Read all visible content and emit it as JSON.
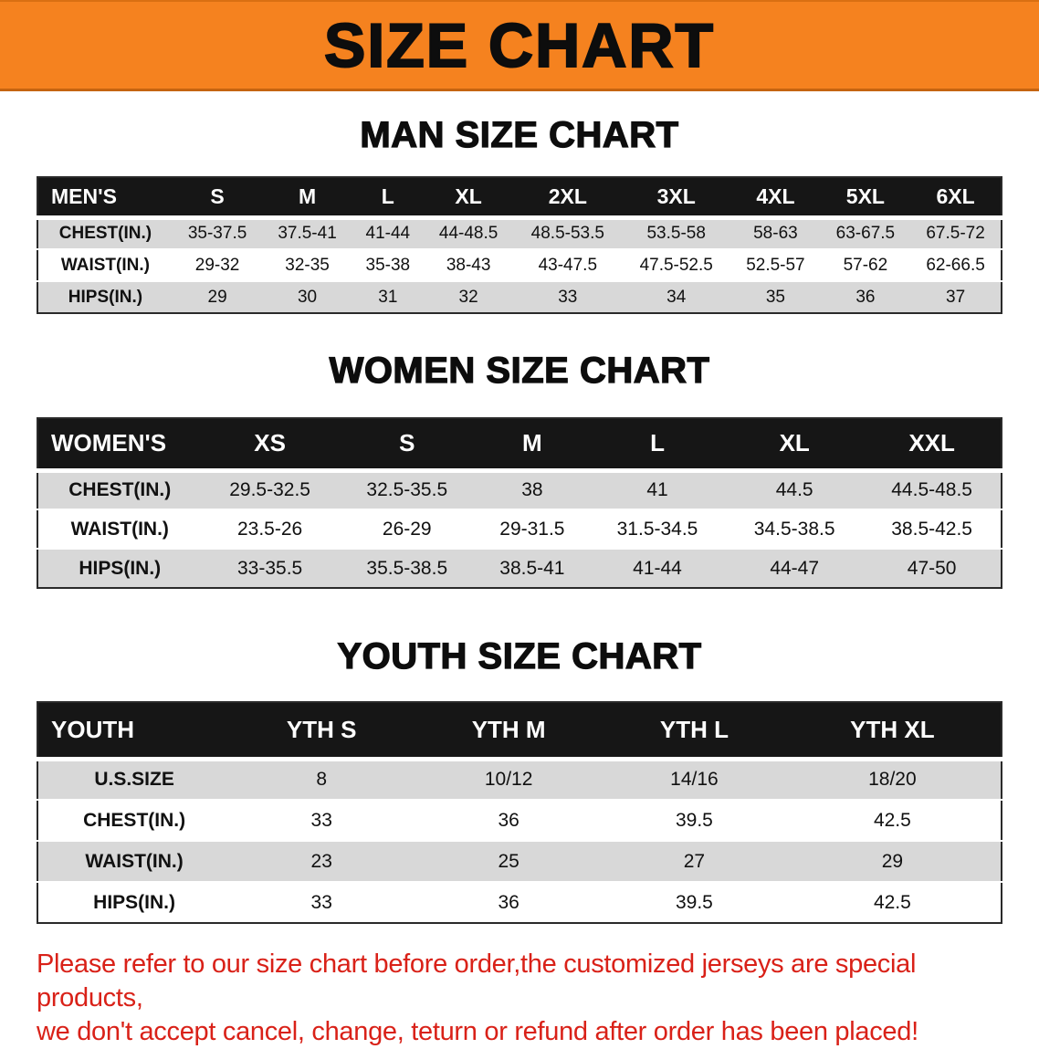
{
  "banner": {
    "title": "SIZE CHART"
  },
  "colors": {
    "banner_bg": "#f5821f",
    "table_header_bg": "#161616",
    "row_alt_bg": "#d8d8d8",
    "disclaimer_red": "#d92118"
  },
  "sections": [
    {
      "heading": "MAN SIZE CHART",
      "table": {
        "header": [
          "MEN'S",
          "S",
          "M",
          "L",
          "XL",
          "2XL",
          "3XL",
          "4XL",
          "5XL",
          "6XL"
        ],
        "rows": [
          [
            "CHEST(IN.)",
            "35-37.5",
            "37.5-41",
            "41-44",
            "44-48.5",
            "48.5-53.5",
            "53.5-58",
            "58-63",
            "63-67.5",
            "67.5-72"
          ],
          [
            "WAIST(IN.)",
            "29-32",
            "32-35",
            "35-38",
            "38-43",
            "43-47.5",
            "47.5-52.5",
            "52.5-57",
            "57-62",
            "62-66.5"
          ],
          [
            "HIPS(IN.)",
            "29",
            "30",
            "31",
            "32",
            "33",
            "34",
            "35",
            "36",
            "37"
          ]
        ]
      }
    },
    {
      "heading": "WOMEN SIZE CHART",
      "table": {
        "header": [
          "WOMEN'S",
          "XS",
          "S",
          "M",
          "L",
          "XL",
          "XXL"
        ],
        "rows": [
          [
            "CHEST(IN.)",
            "29.5-32.5",
            "32.5-35.5",
            "38",
            "41",
            "44.5",
            "44.5-48.5"
          ],
          [
            "WAIST(IN.)",
            "23.5-26",
            "26-29",
            "29-31.5",
            "31.5-34.5",
            "34.5-38.5",
            "38.5-42.5"
          ],
          [
            "HIPS(IN.)",
            "33-35.5",
            "35.5-38.5",
            "38.5-41",
            "41-44",
            "44-47",
            "47-50"
          ]
        ]
      }
    },
    {
      "heading": "YOUTH SIZE CHART",
      "table": {
        "header": [
          "YOUTH",
          "YTH S",
          "YTH M",
          "YTH L",
          "YTH XL"
        ],
        "rows": [
          [
            "U.S.SIZE",
            "8",
            "10/12",
            "14/16",
            "18/20"
          ],
          [
            "CHEST(IN.)",
            "33",
            "36",
            "39.5",
            "42.5"
          ],
          [
            "WAIST(IN.)",
            "23",
            "25",
            "27",
            "29"
          ],
          [
            "HIPS(IN.)",
            "33",
            "36",
            "39.5",
            "42.5"
          ]
        ]
      }
    }
  ],
  "disclaimer": {
    "line1": "Please refer to our size chart before order,the customized jerseys are special products,",
    "line2": "we don't accept cancel, change, teturn or refund after order has been placed!"
  }
}
